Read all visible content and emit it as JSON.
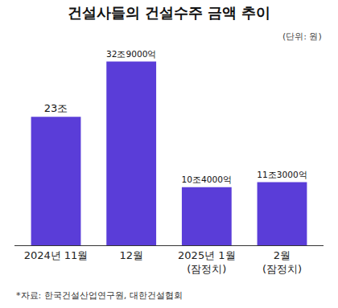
{
  "chart_data": {
    "type": "bar",
    "title": "건설사들의 건설수주 금액 추이",
    "subtitle": "(단위: 원)",
    "source": "*자료: 한국건설산업연구원, 대한건설협회",
    "categories": [
      "2024년 11월",
      "12월",
      "2025년 1월 (잠정치)",
      "2월 (잠정치)"
    ],
    "values": [
      23,
      32.9,
      10.4,
      11.3
    ],
    "value_labels": [
      "23조",
      "32조9000억",
      "10조4000억",
      "11조3000억"
    ],
    "color": "#5a3dd8",
    "ylim": [
      0,
      35
    ],
    "grid": false,
    "data_labels": true,
    "tick_labels": "x"
  }
}
